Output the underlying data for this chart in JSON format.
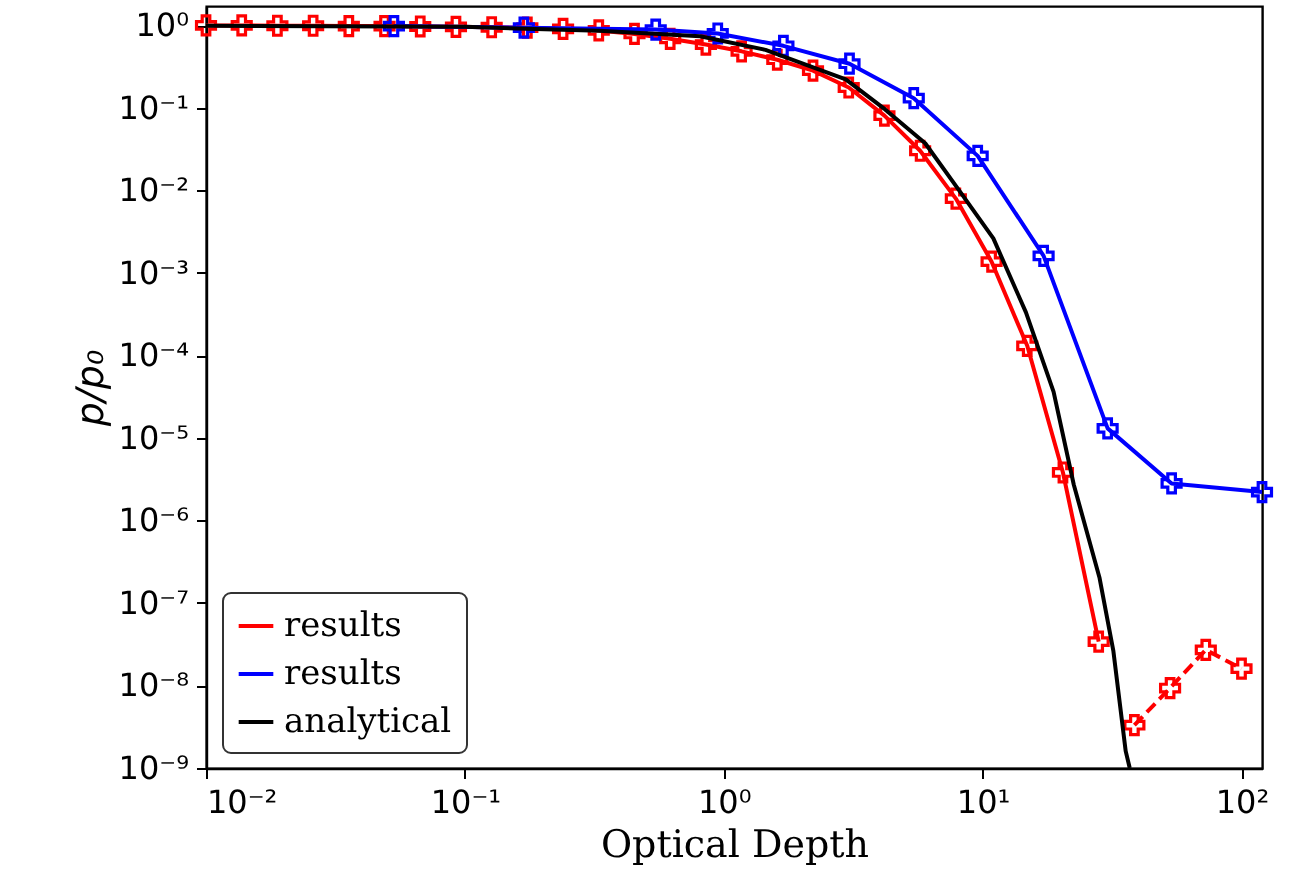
{
  "chart_data": {
    "type": "line",
    "xlabel": "Optical Depth",
    "ylabel": "p/p₀",
    "log": "xy",
    "grid": false,
    "legend": "bottom left",
    "xlim": [
      0.01,
      120
    ],
    "ylim": [
      1e-09,
      1.7
    ],
    "xticks": [
      {
        "value": 0.01,
        "label": "10⁻²"
      },
      {
        "value": 0.1,
        "label": "10⁻¹"
      },
      {
        "value": 1,
        "label": "10⁰"
      },
      {
        "value": 10,
        "label": "10¹"
      },
      {
        "value": 100,
        "label": "10²"
      }
    ],
    "yticks": [
      {
        "value": 1e-09,
        "label": "10⁻⁹"
      },
      {
        "value": 1e-08,
        "label": "10⁻⁸"
      },
      {
        "value": 1e-07,
        "label": "10⁻⁷"
      },
      {
        "value": 1e-06,
        "label": "10⁻⁶"
      },
      {
        "value": 1e-05,
        "label": "10⁻⁵"
      },
      {
        "value": 0.0001,
        "label": "10⁻⁴"
      },
      {
        "value": 0.001,
        "label": "10⁻³"
      },
      {
        "value": 0.01,
        "label": "10⁻²"
      },
      {
        "value": 0.1,
        "label": "10⁻¹"
      },
      {
        "value": 1,
        "label": "10⁰"
      }
    ],
    "series": [
      {
        "name": "results",
        "color": "#ff0000",
        "marker": "cross",
        "line_style": "solid",
        "x": [
          0.01,
          0.01374,
          0.01887,
          0.02593,
          0.03562,
          0.04894,
          0.06723,
          0.09237,
          0.1269,
          0.1743,
          0.2395,
          0.329,
          0.452,
          0.621,
          0.853,
          1.172,
          1.61,
          2.212,
          3.039,
          4.175,
          5.736,
          7.88,
          10.83,
          14.87,
          20.43,
          28.07
        ],
        "values": [
          0.99,
          0.99,
          0.98,
          0.98,
          0.97,
          0.97,
          0.96,
          0.95,
          0.94,
          0.93,
          0.9,
          0.86,
          0.78,
          0.68,
          0.58,
          0.48,
          0.38,
          0.28,
          0.175,
          0.08,
          0.03,
          0.0079,
          0.00136,
          0.00013,
          3.8e-06,
          3.4e-08
        ]
      },
      {
        "color": "#ff0000",
        "marker": "cross",
        "line_style": "dashed",
        "x": [
          38.57,
          52.98,
          72.79,
          100
        ],
        "values": [
          3.3e-09,
          9.3e-09,
          2.7e-08,
          1.6e-08
        ]
      },
      {
        "name": "results",
        "color": "#0000ff",
        "marker": "cross",
        "line_style": "solid",
        "x": [
          0.0532,
          0.169,
          0.546,
          0.948,
          1.7,
          3.06,
          5.42,
          9.57,
          17.2,
          30.4,
          53.7,
          120
        ],
        "values": [
          0.97,
          0.93,
          0.88,
          0.79,
          0.56,
          0.34,
          0.13,
          0.026,
          0.0016,
          1.3e-05,
          2.8e-06,
          2.2e-06
        ]
      },
      {
        "name": "analytical",
        "color": "#000000",
        "marker": "none",
        "line_style": "solid",
        "x": [
          0.01,
          0.1,
          0.33,
          0.81,
          1.45,
          2.96,
          4.2,
          6,
          8.1,
          11,
          14.7,
          18.8,
          22.5,
          28.3,
          32,
          35.7,
          37
        ],
        "values": [
          0.98,
          0.95,
          0.85,
          0.73,
          0.5,
          0.22,
          0.095,
          0.037,
          0.01,
          0.0026,
          0.00033,
          3.6e-05,
          2.7e-06,
          2e-07,
          2.6e-08,
          1.6e-09,
          1e-09
        ]
      }
    ]
  }
}
